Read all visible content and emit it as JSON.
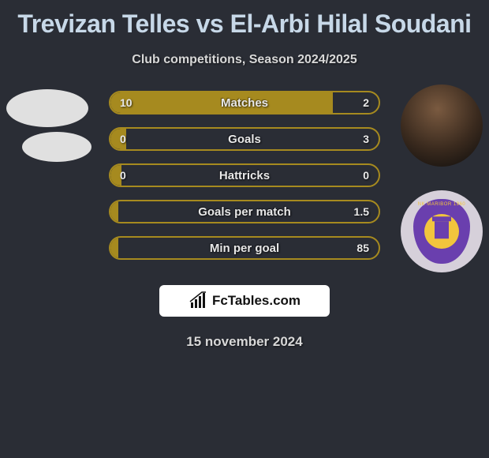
{
  "title": "Trevizan Telles vs El-Arbi Hilal Soudani",
  "subtitle": "Club competitions, Season 2024/2025",
  "date": "15 november 2024",
  "fctables_label": "FcTables.com",
  "colors": {
    "background": "#2a2d35",
    "title_text": "#c7d8e8",
    "body_text": "#d8d8d8",
    "bar_border": "#a68a1f",
    "bar_fill_left": "#a68a1f",
    "bar_fill_right_bg": "#2a2d35",
    "badge_bg": "#ffffff",
    "crest_purple": "#6a3fae",
    "crest_yellow": "#f2c53d",
    "avatar_placeholder": "#e0e0e0"
  },
  "bars": [
    {
      "label": "Matches",
      "left": "10",
      "right": "2",
      "left_pct": 83
    },
    {
      "label": "Goals",
      "left": "0",
      "right": "3",
      "left_pct": 6
    },
    {
      "label": "Hattricks",
      "left": "0",
      "right": "0",
      "left_pct": 4
    },
    {
      "label": "Goals per match",
      "left": "",
      "right": "1.5",
      "left_pct": 3
    },
    {
      "label": "Min per goal",
      "left": "",
      "right": "85",
      "left_pct": 3
    }
  ]
}
